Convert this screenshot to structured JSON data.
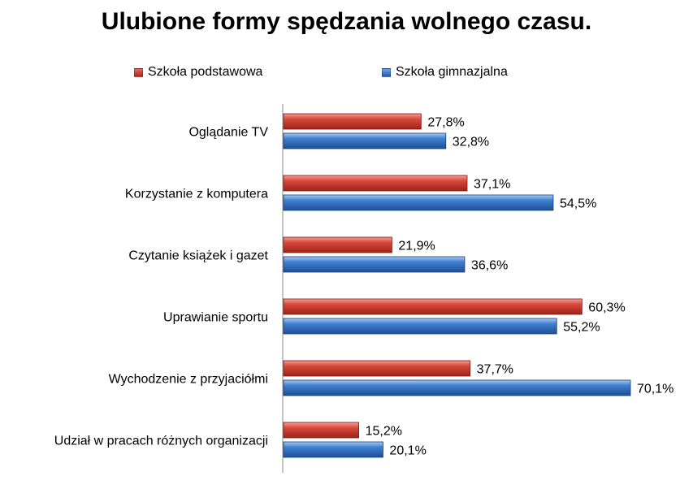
{
  "chart_data": {
    "type": "bar",
    "orientation": "horizontal",
    "title": "Ulubione formy spędzania wolnego czasu.",
    "categories": [
      "Oglądanie TV",
      "Korzystanie z komputera",
      "Czytanie książek i gazet",
      "Uprawianie sportu",
      "Wychodzenie z przyjaciółmi",
      "Udział w pracach różnych organizacji"
    ],
    "series": [
      {
        "name": "Szkoła podstawowa",
        "color": "#c0392b",
        "values": [
          27.8,
          37.1,
          21.9,
          60.3,
          37.7,
          15.2
        ],
        "labels": [
          "27,8%",
          "37,1%",
          "21,9%",
          "60,3%",
          "37,7%",
          "15,2%"
        ]
      },
      {
        "name": "Szkoła gimnazjalna",
        "color": "#2f6fc0",
        "values": [
          32.8,
          54.5,
          36.6,
          55.2,
          70.1,
          20.1
        ],
        "labels": [
          "32,8%",
          "54,5%",
          "36,6%",
          "55,2%",
          "70,1%",
          "20,1%"
        ]
      }
    ],
    "xlim": [
      0,
      70.1
    ],
    "legend_position": "top",
    "grid": false
  }
}
